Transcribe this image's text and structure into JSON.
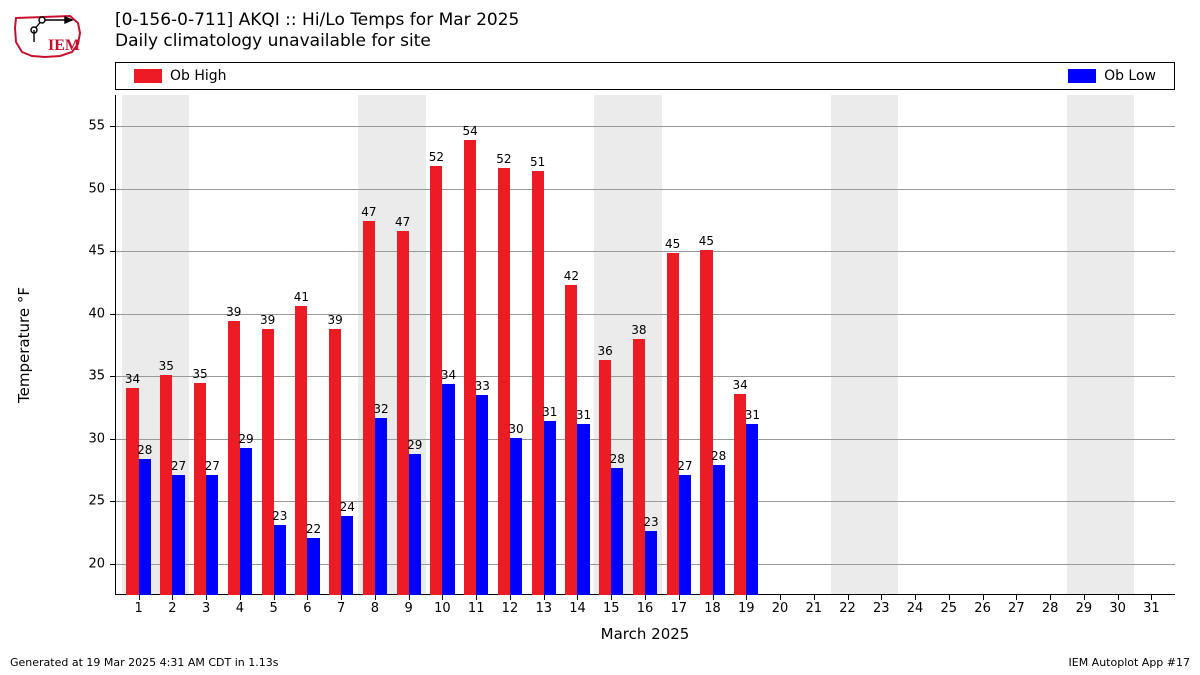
{
  "title_line1": "[0-156-0-711] AKQI :: Hi/Lo Temps for Mar 2025",
  "title_line2": "Daily climatology unavailable for site",
  "legend": {
    "high_label": "Ob High",
    "low_label": "Ob Low",
    "high_color": "#ec1c24",
    "low_color": "#0000fe"
  },
  "footer_left": "Generated at 19 Mar 2025 4:31 AM CDT in 1.13s",
  "footer_right": "IEM Autoplot App #17",
  "chart": {
    "type": "bar",
    "x_axis_title": "March 2025",
    "y_axis_title": "Temperature °F",
    "xlim": [
      0.3,
      31.7
    ],
    "ylim": [
      17.5,
      57.5
    ],
    "yticks": [
      20,
      25,
      30,
      35,
      40,
      45,
      50,
      55
    ],
    "xticks": [
      1,
      2,
      3,
      4,
      5,
      6,
      7,
      8,
      9,
      10,
      11,
      12,
      13,
      14,
      15,
      16,
      17,
      18,
      19,
      20,
      21,
      22,
      23,
      24,
      25,
      26,
      27,
      28,
      29,
      30,
      31
    ],
    "grid_color": "#999999",
    "background_color": "#ffffff",
    "weekend_band_color": "#ebebeb",
    "weekend_days": [
      1,
      2,
      8,
      9,
      15,
      16,
      22,
      23,
      29,
      30
    ],
    "bar_width": 0.36,
    "high_color": "#ec1c24",
    "low_color": "#0000fe",
    "data": [
      {
        "day": 1,
        "high": 34,
        "low": 28,
        "hbar": 34.1,
        "lbar": 28.4
      },
      {
        "day": 2,
        "high": 35,
        "low": 27,
        "hbar": 35.1,
        "lbar": 27.1
      },
      {
        "day": 3,
        "high": 35,
        "low": 27,
        "hbar": 34.5,
        "lbar": 27.1
      },
      {
        "day": 4,
        "high": 39,
        "low": 29,
        "hbar": 39.4,
        "lbar": 29.3
      },
      {
        "day": 5,
        "high": 39,
        "low": 23,
        "hbar": 38.8,
        "lbar": 23.1
      },
      {
        "day": 6,
        "high": 41,
        "low": 22,
        "hbar": 40.6,
        "lbar": 22.1
      },
      {
        "day": 7,
        "high": 39,
        "low": 24,
        "hbar": 38.8,
        "lbar": 23.8
      },
      {
        "day": 8,
        "high": 47,
        "low": 32,
        "hbar": 47.4,
        "lbar": 31.7
      },
      {
        "day": 9,
        "high": 47,
        "low": 29,
        "hbar": 46.6,
        "lbar": 28.8
      },
      {
        "day": 10,
        "high": 52,
        "low": 34,
        "hbar": 51.8,
        "lbar": 34.4
      },
      {
        "day": 11,
        "high": 54,
        "low": 33,
        "hbar": 53.9,
        "lbar": 33.5
      },
      {
        "day": 12,
        "high": 52,
        "low": 30,
        "hbar": 51.7,
        "lbar": 30.1
      },
      {
        "day": 13,
        "high": 51,
        "low": 31,
        "hbar": 51.4,
        "lbar": 31.4
      },
      {
        "day": 14,
        "high": 42,
        "low": 31,
        "hbar": 42.3,
        "lbar": 31.2
      },
      {
        "day": 15,
        "high": 36,
        "low": 28,
        "hbar": 36.3,
        "lbar": 27.7
      },
      {
        "day": 16,
        "high": 38,
        "low": 23,
        "hbar": 38.0,
        "lbar": 22.6
      },
      {
        "day": 17,
        "high": 45,
        "low": 27,
        "hbar": 44.9,
        "lbar": 27.1
      },
      {
        "day": 18,
        "high": 45,
        "low": 28,
        "hbar": 45.1,
        "lbar": 27.9
      },
      {
        "day": 19,
        "high": 34,
        "low": 31,
        "hbar": 33.6,
        "lbar": 31.2
      }
    ]
  }
}
